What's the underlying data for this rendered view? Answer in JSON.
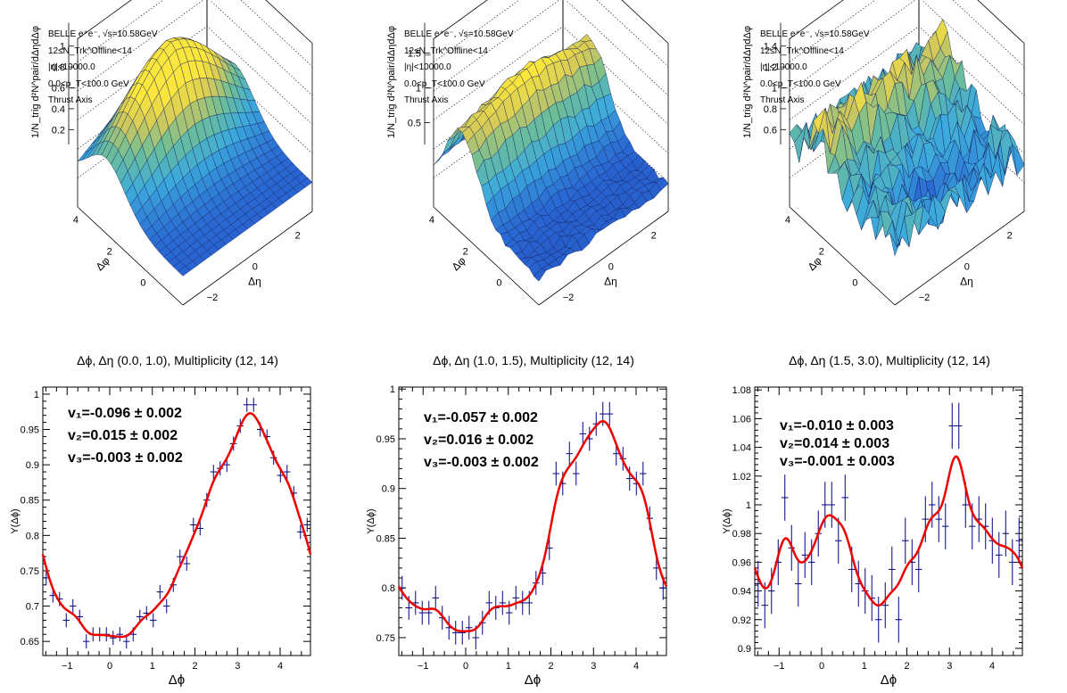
{
  "header_lines": [
    "BELLE e⁺e⁻, √s=10.58GeV",
    "12≤N_Trk^Offline<14",
    "|η|<10000.0",
    "0.0<p_T<100.0 GeV",
    "Thrust Axis"
  ],
  "surface_z_label": "1/N_trig d²N^pair/dΔηdΔφ",
  "surface_x_label": "Δφ",
  "surface_y_label": "Δη",
  "colors": {
    "fit": "#ee0000",
    "points": "#000080",
    "surface_low": "#2a55c8",
    "surface_high": "#f5e23c"
  },
  "chart_data": [
    {
      "type": "surface",
      "panel": 1,
      "z_ticks": [
        "0.2",
        "0.4",
        "0.6",
        "0.8",
        "1"
      ],
      "x_ticks": [
        "0",
        "2",
        "4"
      ],
      "y_ticks": [
        "−2",
        "0",
        "2"
      ],
      "shape": "peak_at_pi"
    },
    {
      "type": "surface",
      "panel": 2,
      "z_ticks": [
        "0.5",
        "1",
        "1.5"
      ],
      "x_ticks": [
        "0",
        "2",
        "4"
      ],
      "y_ticks": [
        "−2",
        "0",
        "2"
      ],
      "shape": "ridge_at_pi"
    },
    {
      "type": "surface",
      "panel": 3,
      "z_ticks": [
        "0.6",
        "0.8",
        "1",
        "1.2",
        "1.4"
      ],
      "x_ticks": [
        "0",
        "2",
        "4"
      ],
      "y_ticks": [
        "−2",
        "0",
        "2"
      ],
      "shape": "noisy_valley"
    },
    {
      "type": "scatter",
      "title": "Δϕ, Δη (0.0, 1.0), Multiplicity (12, 14)",
      "xlabel": "Δϕ",
      "ylabel": "Y(Δϕ)",
      "xlim": [
        -1.571,
        4.712
      ],
      "ylim": [
        0.63,
        1.01
      ],
      "x_ticks": [
        -1,
        0,
        1,
        2,
        3,
        4
      ],
      "y_ticks": [
        0.65,
        0.7,
        0.75,
        0.8,
        0.85,
        0.9,
        0.95,
        1
      ],
      "y_tick_labels": [
        "0.65",
        "0.7",
        "0.75",
        "0.8",
        "0.85",
        "0.9",
        "0.95",
        "1"
      ],
      "fit": {
        "v1": "v₁=-0.096 ± 0.002",
        "v2": "v₂=0.015 ± 0.002",
        "v3": "v₃=-0.003 ± 0.002",
        "a0": 0.7816,
        "c1": -0.096,
        "c2": 0.015,
        "c3": -0.003
      },
      "x": [
        -1.492,
        -1.335,
        -1.178,
        -1.021,
        -0.864,
        -0.707,
        -0.55,
        -0.393,
        -0.236,
        -0.079,
        0.079,
        0.236,
        0.393,
        0.55,
        0.707,
        0.864,
        1.021,
        1.178,
        1.335,
        1.492,
        1.65,
        1.807,
        1.964,
        2.121,
        2.278,
        2.435,
        2.592,
        2.749,
        2.906,
        3.063,
        3.22,
        3.377,
        3.534,
        3.691,
        3.848,
        4.006,
        4.163,
        4.32,
        4.477,
        4.634
      ],
      "y": [
        0.74,
        0.715,
        0.71,
        0.68,
        0.7,
        0.685,
        0.65,
        0.66,
        0.66,
        0.66,
        0.655,
        0.66,
        0.65,
        0.66,
        0.685,
        0.69,
        0.68,
        0.72,
        0.7,
        0.73,
        0.77,
        0.76,
        0.815,
        0.81,
        0.85,
        0.89,
        0.895,
        0.9,
        0.93,
        0.955,
        0.985,
        0.985,
        0.95,
        0.94,
        0.91,
        0.885,
        0.89,
        0.86,
        0.805,
        0.815
      ],
      "yerr": 0.01
    },
    {
      "type": "scatter",
      "title": "Δϕ, Δη (1.0, 1.5), Multiplicity (12, 14)",
      "xlabel": "Δϕ",
      "ylabel": "Y(Δϕ)",
      "xlim": [
        -1.571,
        4.712
      ],
      "ylim": [
        0.732,
        1.002
      ],
      "x_ticks": [
        -1,
        0,
        1,
        2,
        3,
        4
      ],
      "y_ticks": [
        0.75,
        0.8,
        0.85,
        0.9,
        0.95,
        1
      ],
      "y_tick_labels": [
        "0.75",
        "0.8",
        "0.85",
        "0.9",
        "0.95",
        "1"
      ],
      "fit": {
        "v1": "v₁=-0.057 ± 0.002",
        "v2": "v₂=0.016 ± 0.002",
        "v3": "v₃=-0.003 ± 0.002",
        "a0": 0.8352,
        "c1": -0.057,
        "c2": 0.016,
        "c3": -0.003
      },
      "x": [
        -1.492,
        -1.335,
        -1.178,
        -1.021,
        -0.864,
        -0.707,
        -0.55,
        -0.393,
        -0.236,
        -0.079,
        0.079,
        0.236,
        0.393,
        0.55,
        0.707,
        0.864,
        1.021,
        1.178,
        1.335,
        1.492,
        1.65,
        1.807,
        1.964,
        2.121,
        2.278,
        2.435,
        2.592,
        2.749,
        2.906,
        3.063,
        3.22,
        3.377,
        3.534,
        3.691,
        3.848,
        4.006,
        4.163,
        4.32,
        4.477,
        4.634
      ],
      "y": [
        0.8,
        0.78,
        0.785,
        0.775,
        0.775,
        0.79,
        0.77,
        0.76,
        0.755,
        0.755,
        0.76,
        0.75,
        0.765,
        0.785,
        0.78,
        0.785,
        0.775,
        0.79,
        0.785,
        0.785,
        0.805,
        0.815,
        0.84,
        0.915,
        0.905,
        0.935,
        0.915,
        0.955,
        0.95,
        0.965,
        0.975,
        0.975,
        0.935,
        0.93,
        0.91,
        0.905,
        0.915,
        0.87,
        0.82,
        0.8
      ],
      "yerr": 0.012
    },
    {
      "type": "scatter",
      "title": "Δϕ, Δη (1.5, 3.0), Multiplicity (12, 14)",
      "xlabel": "Δϕ",
      "ylabel": "Y(Δϕ)",
      "xlim": [
        -1.571,
        4.712
      ],
      "ylim": [
        0.895,
        1.082
      ],
      "x_ticks": [
        -1,
        0,
        1,
        2,
        3,
        4
      ],
      "y_ticks": [
        0.9,
        0.92,
        0.94,
        0.96,
        0.98,
        1,
        1.02,
        1.04,
        1.06,
        1.08
      ],
      "y_tick_labels": [
        "0.9",
        "0.92",
        "0.94",
        "0.96",
        "0.98",
        "1",
        "1.02",
        "1.04",
        "1.06",
        "1.08"
      ],
      "fit": {
        "v1": "v₁=-0.010 ± 0.003",
        "v2": "v₂=0.014 ± 0.003",
        "v3": "v₃=-0.001 ± 0.003",
        "a0": 0.9721,
        "c1": -0.01,
        "c2": 0.014,
        "c3": -0.001
      },
      "x": [
        -1.492,
        -1.335,
        -1.178,
        -1.021,
        -0.864,
        -0.707,
        -0.55,
        -0.393,
        -0.236,
        -0.079,
        0.079,
        0.236,
        0.393,
        0.55,
        0.707,
        0.864,
        1.021,
        1.178,
        1.335,
        1.492,
        1.65,
        1.807,
        1.964,
        2.121,
        2.278,
        2.435,
        2.592,
        2.749,
        2.906,
        3.063,
        3.22,
        3.377,
        3.534,
        3.691,
        3.848,
        4.006,
        4.163,
        4.32,
        4.477,
        4.634
      ],
      "y": [
        0.945,
        0.93,
        0.94,
        0.96,
        1.005,
        0.97,
        0.945,
        0.965,
        0.96,
        0.98,
        1.0,
        1.0,
        0.975,
        1.005,
        0.955,
        0.945,
        0.94,
        0.935,
        0.92,
        0.93,
        0.955,
        0.92,
        0.975,
        0.96,
        0.955,
        0.99,
        1.0,
        0.99,
        0.985,
        1.055,
        1.055,
        1.0,
        0.985,
        0.99,
        0.985,
        0.975,
        0.965,
        0.98,
        0.96,
        0.975
      ],
      "yerr": 0.016
    }
  ]
}
